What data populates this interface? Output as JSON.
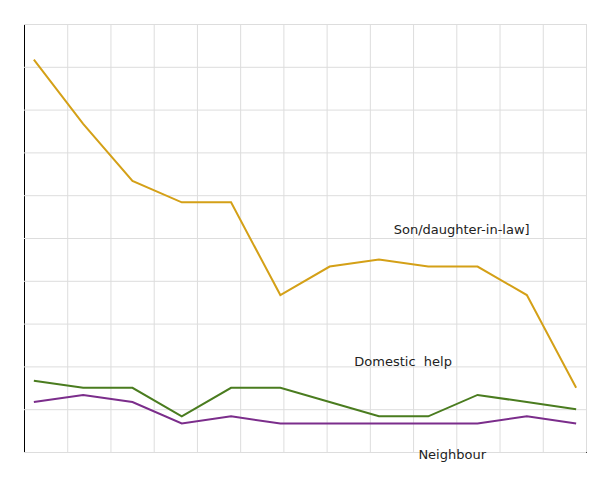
{
  "chart_data": {
    "type": "line",
    "x": [
      0,
      1,
      2,
      3,
      4,
      5,
      6,
      7,
      8,
      9,
      10,
      11
    ],
    "series": [
      {
        "name": "Son/daughter-in-law]",
        "color": "#d4a017",
        "values": [
          55,
          46,
          38,
          35,
          35,
          22,
          26,
          27,
          26,
          26,
          22,
          9
        ]
      },
      {
        "name": "Domestic  help",
        "color": "#4a7c1f",
        "values": [
          10,
          9,
          9,
          5,
          9,
          9,
          7,
          5,
          5,
          8,
          7,
          6
        ]
      },
      {
        "name": "Neighbour",
        "color": "#7b2d8b",
        "values": [
          7,
          8,
          7,
          4,
          5,
          4,
          4,
          4,
          4,
          4,
          5,
          4
        ]
      }
    ],
    "annotations": [
      {
        "text": "Son/daughter-in-law]",
        "x": 7.3,
        "y": 30.5
      },
      {
        "text": "Domestic  help",
        "x": 6.5,
        "y": 12
      },
      {
        "text": "Neighbour",
        "x": 7.8,
        "y": -1
      }
    ],
    "xlim": [
      -0.2,
      11.2
    ],
    "ylim": [
      0,
      60
    ],
    "xticks": [
      -0.2,
      0.676923,
      1.553846,
      2.430769,
      3.307692,
      4.184615,
      5.061538,
      5.938462,
      6.815385,
      7.692308,
      8.569231,
      9.446154,
      10.323077,
      11.2
    ],
    "yticks": [
      0,
      6,
      12,
      18,
      24,
      30,
      36,
      42,
      48,
      54,
      60
    ],
    "grid": true,
    "tick_labels": false
  }
}
